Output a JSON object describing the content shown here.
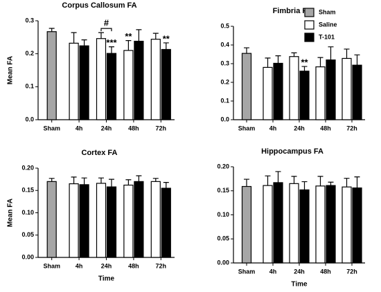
{
  "chart_data": [
    {
      "type": "bar",
      "title": "Corpus Callosum FA",
      "y_label": "Mean FA",
      "categories": [
        "Sham",
        "4h",
        "24h",
        "48h",
        "72h"
      ],
      "series": [
        {
          "name": "Sham",
          "color": "#a6a6a6",
          "values": [
            0.267,
            null,
            null,
            null,
            null
          ],
          "errors": [
            0.01,
            null,
            null,
            null,
            null
          ]
        },
        {
          "name": "Saline",
          "color": "#ffffff",
          "values": [
            null,
            0.232,
            0.246,
            0.21,
            0.244
          ],
          "errors": [
            null,
            0.032,
            0.018,
            0.03,
            0.018
          ]
        },
        {
          "name": "T-101",
          "color": "#000000",
          "values": [
            null,
            0.224,
            0.201,
            0.238,
            0.213
          ],
          "errors": [
            null,
            0.018,
            0.02,
            0.035,
            0.02
          ]
        }
      ],
      "ylim": [
        0,
        0.3
      ],
      "yticks": [
        {
          "value": 0,
          "label": "0.0"
        },
        0.1,
        0.2,
        0.3
      ],
      "legend": false,
      "annotations": [
        {
          "text": "#",
          "category": "24h",
          "bracket": true
        },
        {
          "text": "***",
          "category": "24h",
          "series": "T-101"
        },
        {
          "text": "**",
          "category": "48h",
          "series": "Saline"
        },
        {
          "text": "**",
          "category": "72h",
          "series": "T-101"
        }
      ]
    },
    {
      "type": "bar",
      "title": "Fimbria FA",
      "categories": [
        "Sham",
        "4h",
        "24h",
        "48h",
        "72h"
      ],
      "series": [
        {
          "name": "Sham",
          "color": "#a6a6a6",
          "values": [
            0.355,
            null,
            null,
            null,
            null
          ],
          "errors": [
            0.03,
            null,
            null,
            null,
            null
          ]
        },
        {
          "name": "Saline",
          "color": "#ffffff",
          "values": [
            null,
            0.28,
            0.338,
            0.283,
            0.328
          ],
          "errors": [
            null,
            0.05,
            0.02,
            0.05,
            0.05
          ]
        },
        {
          "name": "T-101",
          "color": "#000000",
          "values": [
            null,
            0.302,
            0.26,
            0.32,
            0.292
          ],
          "errors": [
            null,
            0.04,
            0.025,
            0.07,
            0.055
          ]
        }
      ],
      "ylim": [
        0,
        0.5
      ],
      "yticks": [
        {
          "value": 0,
          "label": "0.0"
        },
        0.1,
        0.2,
        0.3,
        0.4,
        0.5
      ],
      "legend": true,
      "annotations": [
        {
          "text": "**",
          "category": "24h",
          "series": "T-101"
        }
      ]
    },
    {
      "type": "bar",
      "title": "Cortex FA",
      "y_label": "Mean FA",
      "x_label": "Time",
      "categories": [
        "Sham",
        "4h",
        "24h",
        "48h",
        "72h"
      ],
      "series": [
        {
          "name": "Sham",
          "color": "#a6a6a6",
          "values": [
            0.17,
            null,
            null,
            null,
            null
          ],
          "errors": [
            0.007,
            null,
            null,
            null,
            null
          ]
        },
        {
          "name": "Saline",
          "color": "#ffffff",
          "values": [
            null,
            0.165,
            0.166,
            0.162,
            0.17
          ],
          "errors": [
            null,
            0.015,
            0.012,
            0.012,
            0.007
          ]
        },
        {
          "name": "T-101",
          "color": "#000000",
          "values": [
            null,
            0.163,
            0.158,
            0.17,
            0.155
          ],
          "errors": [
            null,
            0.015,
            0.017,
            0.013,
            0.013
          ]
        }
      ],
      "ylim": [
        0,
        0.2
      ],
      "yticks": [
        {
          "value": 0,
          "label": "0.00"
        },
        {
          "value": 0.05,
          "label": "0.05"
        },
        {
          "value": 0.1,
          "label": "0.10"
        },
        {
          "value": 0.15,
          "label": "0.15"
        },
        {
          "value": 0.2,
          "label": "0.20"
        }
      ],
      "legend": false
    },
    {
      "type": "bar",
      "title": "Hippocampus FA",
      "x_label": "Time",
      "categories": [
        "Sham",
        "4h",
        "24h",
        "48h",
        "72h"
      ],
      "series": [
        {
          "name": "Sham",
          "color": "#a6a6a6",
          "values": [
            0.159,
            null,
            null,
            null,
            null
          ],
          "errors": [
            0.015,
            null,
            null,
            null,
            null
          ]
        },
        {
          "name": "Saline",
          "color": "#ffffff",
          "values": [
            null,
            0.161,
            0.165,
            0.16,
            0.158
          ],
          "errors": [
            null,
            0.02,
            0.015,
            0.02,
            0.018
          ]
        },
        {
          "name": "T-101",
          "color": "#000000",
          "values": [
            null,
            0.167,
            0.152,
            0.161,
            0.156
          ],
          "errors": [
            null,
            0.023,
            0.017,
            0.007,
            0.023
          ]
        }
      ],
      "ylim": [
        0,
        0.2
      ],
      "yticks": [
        {
          "value": 0,
          "label": "0.00"
        },
        {
          "value": 0.05,
          "label": "0.05"
        },
        {
          "value": 0.1,
          "label": "0.10"
        },
        {
          "value": 0.15,
          "label": "0.15"
        },
        {
          "value": 0.2,
          "label": "0.20"
        }
      ],
      "legend": false
    }
  ]
}
